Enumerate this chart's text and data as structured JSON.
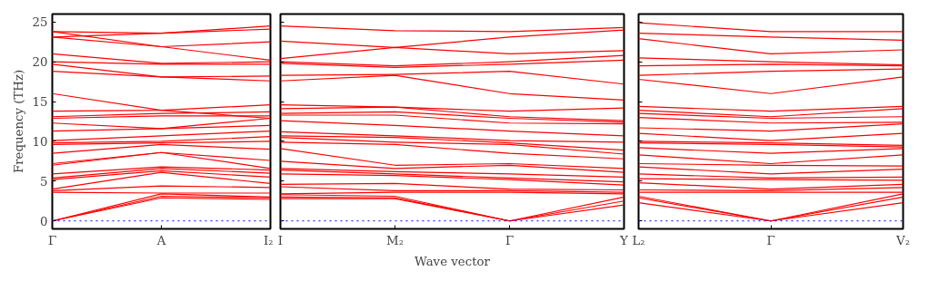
{
  "chart_data": [
    {
      "type": "line",
      "ylabel": "Frequency (THz)",
      "categories": [
        "Γ",
        "A",
        "I₂"
      ],
      "ylim": [
        -1,
        26
      ],
      "yticks": [
        0,
        5,
        10,
        15,
        20,
        25
      ],
      "grid": false,
      "marker": "none",
      "line_style": "solid",
      "ref_lines": [
        {
          "axis": "y",
          "value": 0,
          "color": "#0000ff",
          "line_style": "dotted"
        }
      ],
      "series": [
        {
          "color": "#ff0000",
          "values": [
            0,
            2.9,
            2.7
          ]
        },
        {
          "color": "#ff0000",
          "values": [
            0,
            3.1,
            2.9
          ]
        },
        {
          "color": "#ff0000",
          "values": [
            0,
            3.4,
            3.0
          ]
        },
        {
          "color": "#ff0000",
          "values": [
            3.6,
            3.5,
            3.5
          ]
        },
        {
          "color": "#ff0000",
          "values": [
            3.8,
            4.4,
            4.2
          ]
        },
        {
          "color": "#ff0000",
          "values": [
            4.0,
            6.1,
            4.7
          ]
        },
        {
          "color": "#ff0000",
          "values": [
            5.2,
            6.3,
            5.5
          ]
        },
        {
          "color": "#ff0000",
          "values": [
            5.4,
            6.6,
            6.0
          ]
        },
        {
          "color": "#ff0000",
          "values": [
            5.9,
            6.8,
            6.4
          ]
        },
        {
          "color": "#ff0000",
          "values": [
            7.0,
            8.6,
            6.6
          ]
        },
        {
          "color": "#ff0000",
          "values": [
            7.2,
            8.6,
            7.6
          ]
        },
        {
          "color": "#ff0000",
          "values": [
            8.5,
            9.6,
            9.0
          ]
        },
        {
          "color": "#ff0000",
          "values": [
            9.6,
            9.8,
            10.0
          ]
        },
        {
          "color": "#ff0000",
          "values": [
            9.8,
            10.0,
            10.6
          ]
        },
        {
          "color": "#ff0000",
          "values": [
            10.1,
            10.7,
            11.3
          ]
        },
        {
          "color": "#ff0000",
          "values": [
            11.3,
            11.6,
            12.0
          ]
        },
        {
          "color": "#ff0000",
          "values": [
            12.3,
            11.6,
            12.9
          ]
        },
        {
          "color": "#ff0000",
          "values": [
            12.9,
            13.2,
            13.2
          ]
        },
        {
          "color": "#ff0000",
          "values": [
            13.1,
            13.5,
            13.7
          ]
        },
        {
          "color": "#ff0000",
          "values": [
            13.8,
            13.9,
            14.6
          ]
        },
        {
          "color": "#ff0000",
          "values": [
            16.0,
            13.9,
            12.9
          ]
        },
        {
          "color": "#ff0000",
          "values": [
            18.8,
            18.1,
            17.6
          ]
        },
        {
          "color": "#ff0000",
          "values": [
            19.7,
            18.1,
            18.2
          ]
        },
        {
          "color": "#ff0000",
          "values": [
            20.0,
            19.7,
            19.7
          ]
        },
        {
          "color": "#ff0000",
          "values": [
            21.0,
            19.8,
            20.0
          ]
        },
        {
          "color": "#ff0000",
          "values": [
            23.1,
            21.9,
            20.2
          ]
        },
        {
          "color": "#ff0000",
          "values": [
            23.8,
            21.9,
            22.5
          ]
        },
        {
          "color": "#ff0000",
          "values": [
            23.1,
            23.6,
            24.5
          ]
        },
        {
          "color": "#ff0000",
          "values": [
            23.8,
            23.6,
            24.1
          ]
        }
      ]
    },
    {
      "type": "line",
      "xlabel": "Wave vector",
      "categories": [
        "I",
        "M₂",
        "Γ",
        "Y"
      ],
      "ylim": [
        -1,
        26
      ],
      "yticks": [
        0,
        5,
        10,
        15,
        20,
        25
      ],
      "tick_labels": "x",
      "grid": false,
      "marker": "none",
      "line_style": "solid",
      "ref_lines": [
        {
          "axis": "y",
          "value": 0,
          "color": "#0000ff",
          "line_style": "dotted"
        }
      ],
      "series": [
        {
          "color": "#ff0000",
          "values": [
            2.8,
            2.8,
            0,
            2.0
          ]
        },
        {
          "color": "#ff0000",
          "values": [
            3.0,
            2.9,
            0,
            2.5
          ]
        },
        {
          "color": "#ff0000",
          "values": [
            3.3,
            3.1,
            0,
            3.0
          ]
        },
        {
          "color": "#ff0000",
          "values": [
            3.4,
            3.6,
            3.6,
            3.4
          ]
        },
        {
          "color": "#ff0000",
          "values": [
            4.3,
            3.8,
            3.8,
            3.6
          ]
        },
        {
          "color": "#ff0000",
          "values": [
            4.6,
            4.7,
            4.0,
            3.9
          ]
        },
        {
          "color": "#ff0000",
          "values": [
            5.9,
            5.7,
            5.2,
            4.5
          ]
        },
        {
          "color": "#ff0000",
          "values": [
            6.4,
            5.9,
            5.4,
            4.9
          ]
        },
        {
          "color": "#ff0000",
          "values": [
            6.6,
            6.2,
            5.9,
            5.5
          ]
        },
        {
          "color": "#ff0000",
          "values": [
            7.5,
            6.6,
            7.0,
            6.1
          ]
        },
        {
          "color": "#ff0000",
          "values": [
            9.1,
            7.0,
            7.2,
            6.6
          ]
        },
        {
          "color": "#ff0000",
          "values": [
            9.9,
            9.6,
            8.5,
            7.8
          ]
        },
        {
          "color": "#ff0000",
          "values": [
            10.5,
            9.9,
            9.6,
            8.4
          ]
        },
        {
          "color": "#ff0000",
          "values": [
            10.7,
            10.5,
            9.8,
            8.9
          ]
        },
        {
          "color": "#ff0000",
          "values": [
            11.2,
            10.7,
            10.1,
            9.9
          ]
        },
        {
          "color": "#ff0000",
          "values": [
            12.6,
            12.0,
            11.3,
            10.7
          ]
        },
        {
          "color": "#ff0000",
          "values": [
            13.3,
            13.3,
            12.3,
            12.2
          ]
        },
        {
          "color": "#ff0000",
          "values": [
            13.5,
            13.7,
            12.9,
            12.4
          ]
        },
        {
          "color": "#ff0000",
          "values": [
            14.1,
            14.3,
            13.1,
            12.6
          ]
        },
        {
          "color": "#ff0000",
          "values": [
            14.6,
            14.3,
            13.8,
            14.2
          ]
        },
        {
          "color": "#ff0000",
          "values": [
            17.6,
            18.3,
            16.0,
            15.2
          ]
        },
        {
          "color": "#ff0000",
          "values": [
            18.3,
            18.4,
            18.8,
            17.2
          ]
        },
        {
          "color": "#ff0000",
          "values": [
            19.8,
            19.3,
            19.7,
            20.2
          ]
        },
        {
          "color": "#ff0000",
          "values": [
            20.0,
            19.5,
            20.0,
            20.8
          ]
        },
        {
          "color": "#ff0000",
          "values": [
            20.4,
            21.8,
            21.0,
            21.4
          ]
        },
        {
          "color": "#ff0000",
          "values": [
            22.6,
            21.8,
            23.1,
            24.0
          ]
        },
        {
          "color": "#ff0000",
          "values": [
            24.5,
            23.9,
            23.8,
            24.3
          ]
        }
      ]
    },
    {
      "type": "line",
      "categories": [
        "L₂",
        "Γ",
        "V₂"
      ],
      "ylim": [
        -1,
        26
      ],
      "yticks": [
        0,
        5,
        10,
        15,
        20,
        25
      ],
      "tick_labels": "x",
      "grid": false,
      "marker": "none",
      "line_style": "solid",
      "ref_lines": [
        {
          "axis": "y",
          "value": 0,
          "color": "#0000ff",
          "line_style": "dotted"
        }
      ],
      "series": [
        {
          "color": "#ff0000",
          "values": [
            2.3,
            0,
            2.3
          ]
        },
        {
          "color": "#ff0000",
          "values": [
            2.9,
            0,
            3.0
          ]
        },
        {
          "color": "#ff0000",
          "values": [
            3.1,
            0,
            3.4
          ]
        },
        {
          "color": "#ff0000",
          "values": [
            3.6,
            3.6,
            3.6
          ]
        },
        {
          "color": "#ff0000",
          "values": [
            3.9,
            3.8,
            4.2
          ]
        },
        {
          "color": "#ff0000",
          "values": [
            4.8,
            4.0,
            4.6
          ]
        },
        {
          "color": "#ff0000",
          "values": [
            5.3,
            5.2,
            5.1
          ]
        },
        {
          "color": "#ff0000",
          "values": [
            5.9,
            5.4,
            5.5
          ]
        },
        {
          "color": "#ff0000",
          "values": [
            6.8,
            5.9,
            6.5
          ]
        },
        {
          "color": "#ff0000",
          "values": [
            7.2,
            7.0,
            6.9
          ]
        },
        {
          "color": "#ff0000",
          "values": [
            8.3,
            7.2,
            8.3
          ]
        },
        {
          "color": "#ff0000",
          "values": [
            9.2,
            8.5,
            9.1
          ]
        },
        {
          "color": "#ff0000",
          "values": [
            9.8,
            9.6,
            9.3
          ]
        },
        {
          "color": "#ff0000",
          "values": [
            10.0,
            9.8,
            9.5
          ]
        },
        {
          "color": "#ff0000",
          "values": [
            11.0,
            10.1,
            11.0
          ]
        },
        {
          "color": "#ff0000",
          "values": [
            11.7,
            11.3,
            12.2
          ]
        },
        {
          "color": "#ff0000",
          "values": [
            13.0,
            12.3,
            12.4
          ]
        },
        {
          "color": "#ff0000",
          "values": [
            13.5,
            12.9,
            13.1
          ]
        },
        {
          "color": "#ff0000",
          "values": [
            13.9,
            13.1,
            14.1
          ]
        },
        {
          "color": "#ff0000",
          "values": [
            14.4,
            13.8,
            14.4
          ]
        },
        {
          "color": "#ff0000",
          "values": [
            17.8,
            16.0,
            18.1
          ]
        },
        {
          "color": "#ff0000",
          "values": [
            18.3,
            18.8,
            19.1
          ]
        },
        {
          "color": "#ff0000",
          "values": [
            19.5,
            19.7,
            19.5
          ]
        },
        {
          "color": "#ff0000",
          "values": [
            20.5,
            20.0,
            19.6
          ]
        },
        {
          "color": "#ff0000",
          "values": [
            22.9,
            21.0,
            21.5
          ]
        },
        {
          "color": "#ff0000",
          "values": [
            23.6,
            23.1,
            22.7
          ]
        },
        {
          "color": "#ff0000",
          "values": [
            24.9,
            23.8,
            23.8
          ]
        }
      ]
    }
  ]
}
